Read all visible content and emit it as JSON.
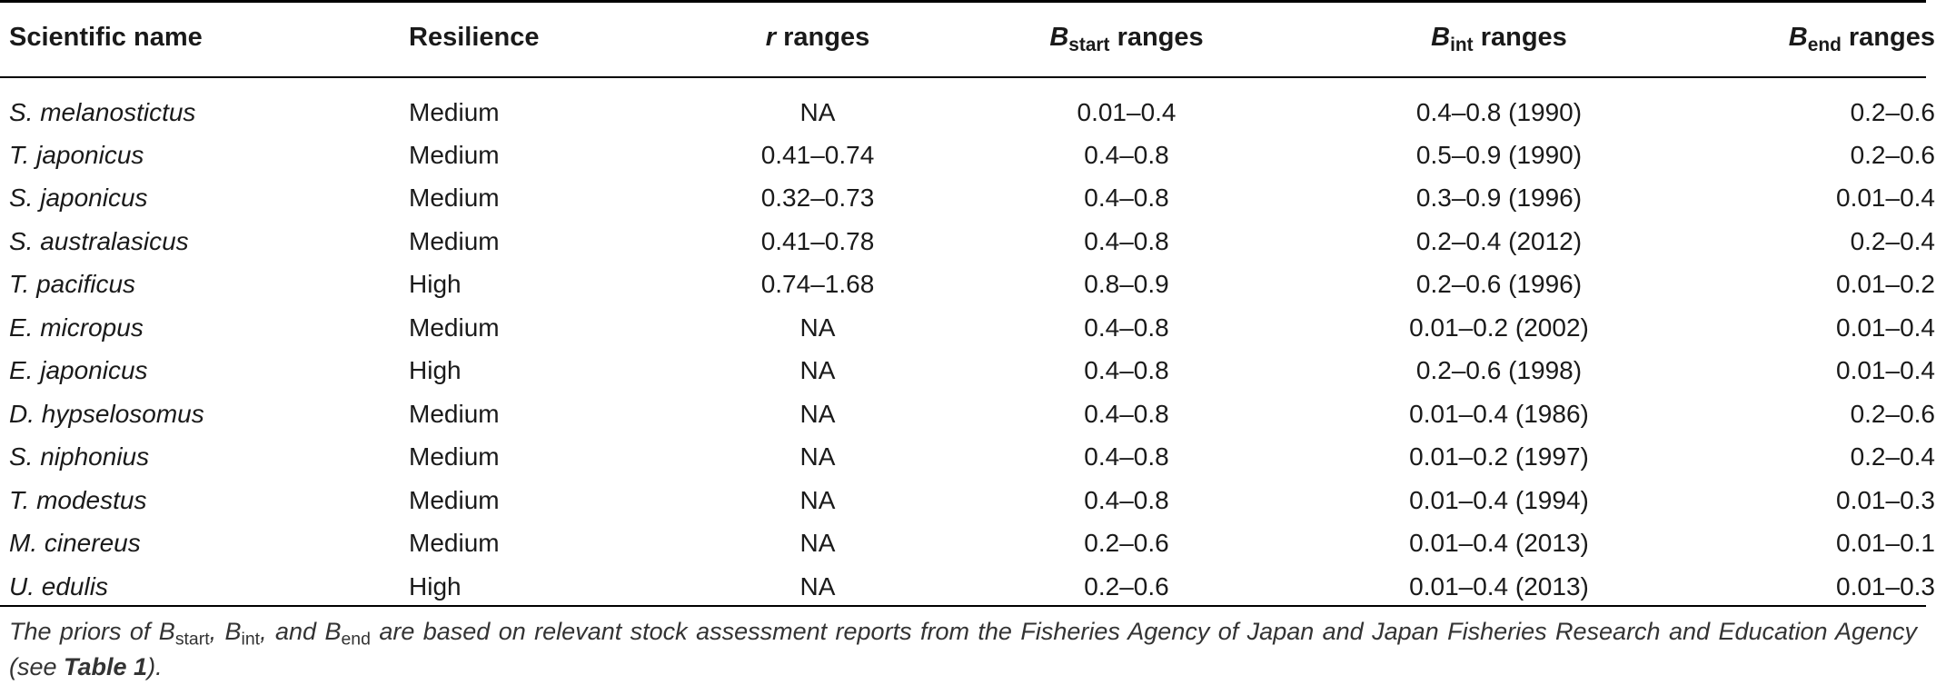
{
  "table": {
    "headers": {
      "name": "Scientific name",
      "resilience": "Resilience",
      "r_symbol": "r",
      "r_suffix": " ranges",
      "b_symbol": "B",
      "bstart_sub": "start",
      "bint_sub": "int",
      "bend_sub": "end",
      "b_suffix": " ranges"
    },
    "rows": [
      {
        "name": "S. melanostictus",
        "resilience": "Medium",
        "r": "NA",
        "bstart": "0.01–0.4",
        "bint": "0.4–0.8 (1990)",
        "bend": "0.2–0.6"
      },
      {
        "name": "T. japonicus",
        "resilience": "Medium",
        "r": "0.41–0.74",
        "bstart": "0.4–0.8",
        "bint": "0.5–0.9 (1990)",
        "bend": "0.2–0.6"
      },
      {
        "name": "S. japonicus",
        "resilience": "Medium",
        "r": "0.32–0.73",
        "bstart": "0.4–0.8",
        "bint": "0.3–0.9 (1996)",
        "bend": "0.01–0.4"
      },
      {
        "name": "S. australasicus",
        "resilience": "Medium",
        "r": "0.41–0.78",
        "bstart": "0.4–0.8",
        "bint": "0.2–0.4 (2012)",
        "bend": "0.2–0.4"
      },
      {
        "name": "T. pacificus",
        "resilience": "High",
        "r": "0.74–1.68",
        "bstart": "0.8–0.9",
        "bint": "0.2–0.6 (1996)",
        "bend": "0.01–0.2"
      },
      {
        "name": "E. micropus",
        "resilience": "Medium",
        "r": "NA",
        "bstart": "0.4–0.8",
        "bint": "0.01–0.2 (2002)",
        "bend": "0.01–0.4"
      },
      {
        "name": "E. japonicus",
        "resilience": "High",
        "r": "NA",
        "bstart": "0.4–0.8",
        "bint": "0.2–0.6 (1998)",
        "bend": "0.01–0.4"
      },
      {
        "name": "D. hypselosomus",
        "resilience": "Medium",
        "r": "NA",
        "bstart": "0.4–0.8",
        "bint": "0.01–0.4 (1986)",
        "bend": "0.2–0.6"
      },
      {
        "name": "S. niphonius",
        "resilience": "Medium",
        "r": "NA",
        "bstart": "0.4–0.8",
        "bint": "0.01–0.2 (1997)",
        "bend": "0.2–0.4"
      },
      {
        "name": "T. modestus",
        "resilience": "Medium",
        "r": "NA",
        "bstart": "0.4–0.8",
        "bint": "0.01–0.4 (1994)",
        "bend": "0.01–0.3"
      },
      {
        "name": "M. cinereus",
        "resilience": "Medium",
        "r": "NA",
        "bstart": "0.2–0.6",
        "bint": "0.01–0.4 (2013)",
        "bend": "0.01–0.1"
      },
      {
        "name": "U. edulis",
        "resilience": "High",
        "r": "NA",
        "bstart": "0.2–0.6",
        "bint": "0.01–0.4 (2013)",
        "bend": "0.01–0.3"
      }
    ]
  },
  "footnote": {
    "t1": "The priors of B",
    "s1": "start",
    "t2": ", B",
    "s2": "int",
    "t3": ", and B",
    "s3": "end",
    "t4": " are based on relevant stock assessment reports from the Fisheries Agency of Japan and Japan Fisheries Research and Education Agency (see ",
    "ref": "Table 1",
    "t5": ")."
  }
}
